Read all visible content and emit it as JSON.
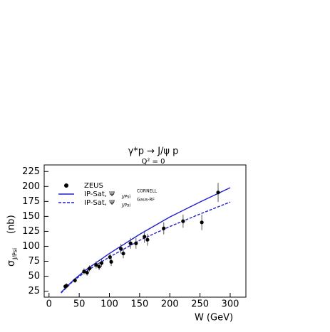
{
  "chart_data": {
    "type": "line",
    "title": "γ*p  →  J/ψ p",
    "subtitle": "Q² = 0",
    "xlabel": "W  (GeV)",
    "ylabel": "σ",
    "ylabel_sub": "J/Psi",
    "ylabel_unit": "(nb)",
    "xlim": [
      -8,
      326
    ],
    "ylim": [
      15,
      236
    ],
    "xticks": [
      0,
      50,
      100,
      150,
      200,
      250,
      300
    ],
    "yticks": [
      25,
      50,
      75,
      100,
      125,
      150,
      175,
      200,
      225
    ],
    "points": {
      "name": "ZEUS",
      "color": "#000000",
      "x": [
        27,
        29,
        43,
        58,
        63,
        67,
        78,
        83,
        87,
        101,
        103,
        119,
        123,
        135,
        144,
        158,
        163,
        190,
        222,
        253,
        280
      ],
      "values": [
        33,
        34,
        43,
        58,
        56,
        63,
        69,
        66,
        72,
        82,
        74,
        96,
        88,
        105,
        105,
        116,
        111,
        130,
        142,
        140,
        190
      ],
      "errors": [
        4,
        4,
        4,
        5,
        5,
        5,
        6,
        6,
        6,
        7,
        7,
        8,
        8,
        9,
        9,
        10,
        10,
        10,
        11,
        13,
        16
      ]
    },
    "series": [
      {
        "name": "IP-Sat, Ψ",
        "name_sub": "J/Psi",
        "name_sup": "CORNELL",
        "color": "#1f1fd0",
        "dash": false,
        "x": [
          20,
          40,
          60,
          80,
          100,
          150,
          200,
          250,
          300
        ],
        "values": [
          23,
          43,
          60,
          74,
          88,
          120,
          149,
          174,
          198
        ]
      },
      {
        "name": "IP-Sat, Ψ",
        "name_sub": "J/Psi",
        "name_sup": "Gaus-RF",
        "color": "#1f1fd0",
        "dash": true,
        "x": [
          20,
          40,
          60,
          80,
          100,
          150,
          200,
          250,
          300
        ],
        "values": [
          22,
          42,
          57,
          70,
          82,
          110,
          133,
          154,
          174
        ]
      }
    ]
  }
}
